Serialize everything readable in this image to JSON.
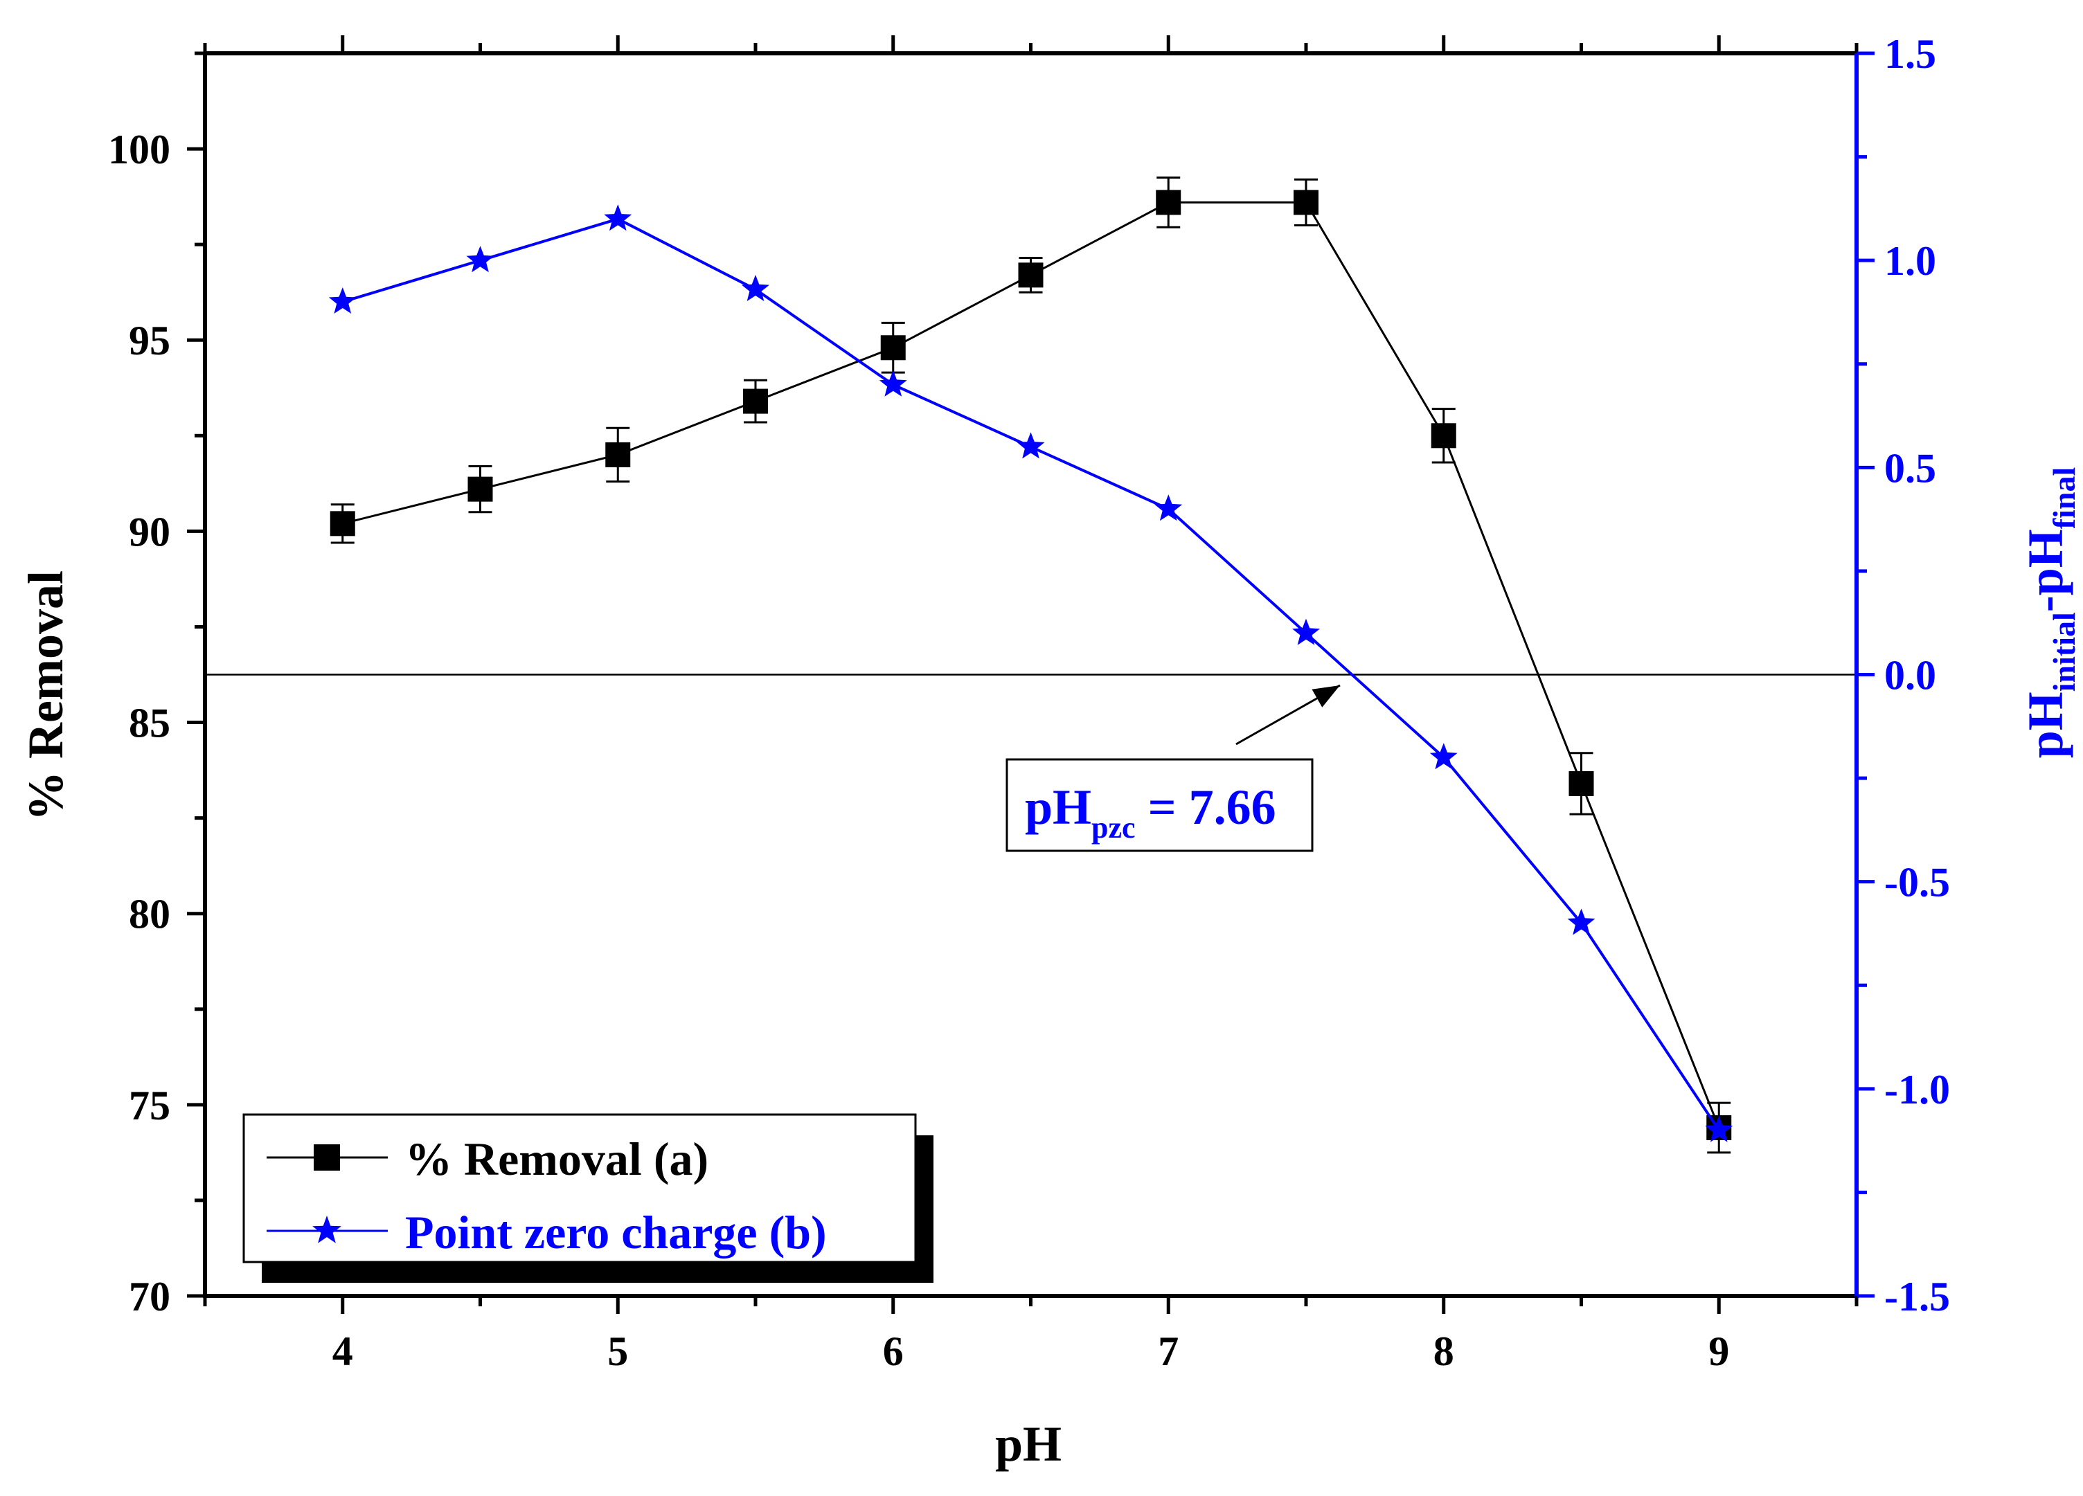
{
  "colors": {
    "left_series": "#000000",
    "right_series": "#0000ff",
    "right_axis": "#0000ff",
    "background": "#ffffff"
  },
  "chart_data": {
    "type": "line",
    "xlabel": "pH",
    "ylabel_left": "% Removal",
    "ylabel_right": {
      "main": "pH",
      "sub1": "initial",
      "mid": "-pH",
      "sub2": "final"
    },
    "xlim": [
      3.5,
      9.5
    ],
    "ylim_left": [
      70,
      102.5
    ],
    "ylim_right": [
      -1.5,
      1.5
    ],
    "x_ticks": [
      4,
      5,
      6,
      7,
      8,
      9
    ],
    "y_left_ticks": [
      70,
      75,
      80,
      85,
      90,
      95,
      100
    ],
    "y_right_ticks": [
      -1.5,
      -1.0,
      -0.5,
      0.0,
      0.5,
      1.0,
      1.5
    ],
    "x_tick_labels": [
      "4",
      "5",
      "6",
      "7",
      "8",
      "9"
    ],
    "y_left_tick_labels": [
      "70",
      "75",
      "80",
      "85",
      "90",
      "95",
      "100"
    ],
    "y_right_tick_labels": [
      "-1.5",
      "-1.0",
      "-0.5",
      "0.0",
      "0.5",
      "1.0",
      "1.5"
    ],
    "series": [
      {
        "name": "% Removal (a)",
        "axis": "left",
        "marker": "square",
        "x": [
          4,
          4.5,
          5,
          5.5,
          6,
          6.5,
          7,
          7.5,
          8,
          8.5,
          9
        ],
        "values": [
          90.2,
          91.1,
          92.0,
          93.4,
          94.8,
          96.7,
          98.6,
          98.6,
          92.5,
          83.4,
          74.4
        ],
        "errors": [
          0.5,
          0.6,
          0.7,
          0.55,
          0.65,
          0.45,
          0.65,
          0.6,
          0.7,
          0.8,
          0.65
        ]
      },
      {
        "name": "Point zero charge (b)",
        "axis": "right",
        "marker": "star",
        "x": [
          4,
          4.5,
          5,
          5.5,
          6,
          6.5,
          7,
          7.5,
          8,
          8.5,
          9
        ],
        "values": [
          0.9,
          1.0,
          1.1,
          0.93,
          0.7,
          0.55,
          0.4,
          0.1,
          -0.2,
          -0.6,
          -1.1
        ]
      }
    ],
    "reference_line": {
      "axis": "right",
      "value": 0.0
    },
    "annotation": {
      "main": "pH",
      "sub": "pzc",
      "rest": " = 7.66",
      "points_to_x": 7.66
    },
    "legend_position": "bottom-left"
  }
}
